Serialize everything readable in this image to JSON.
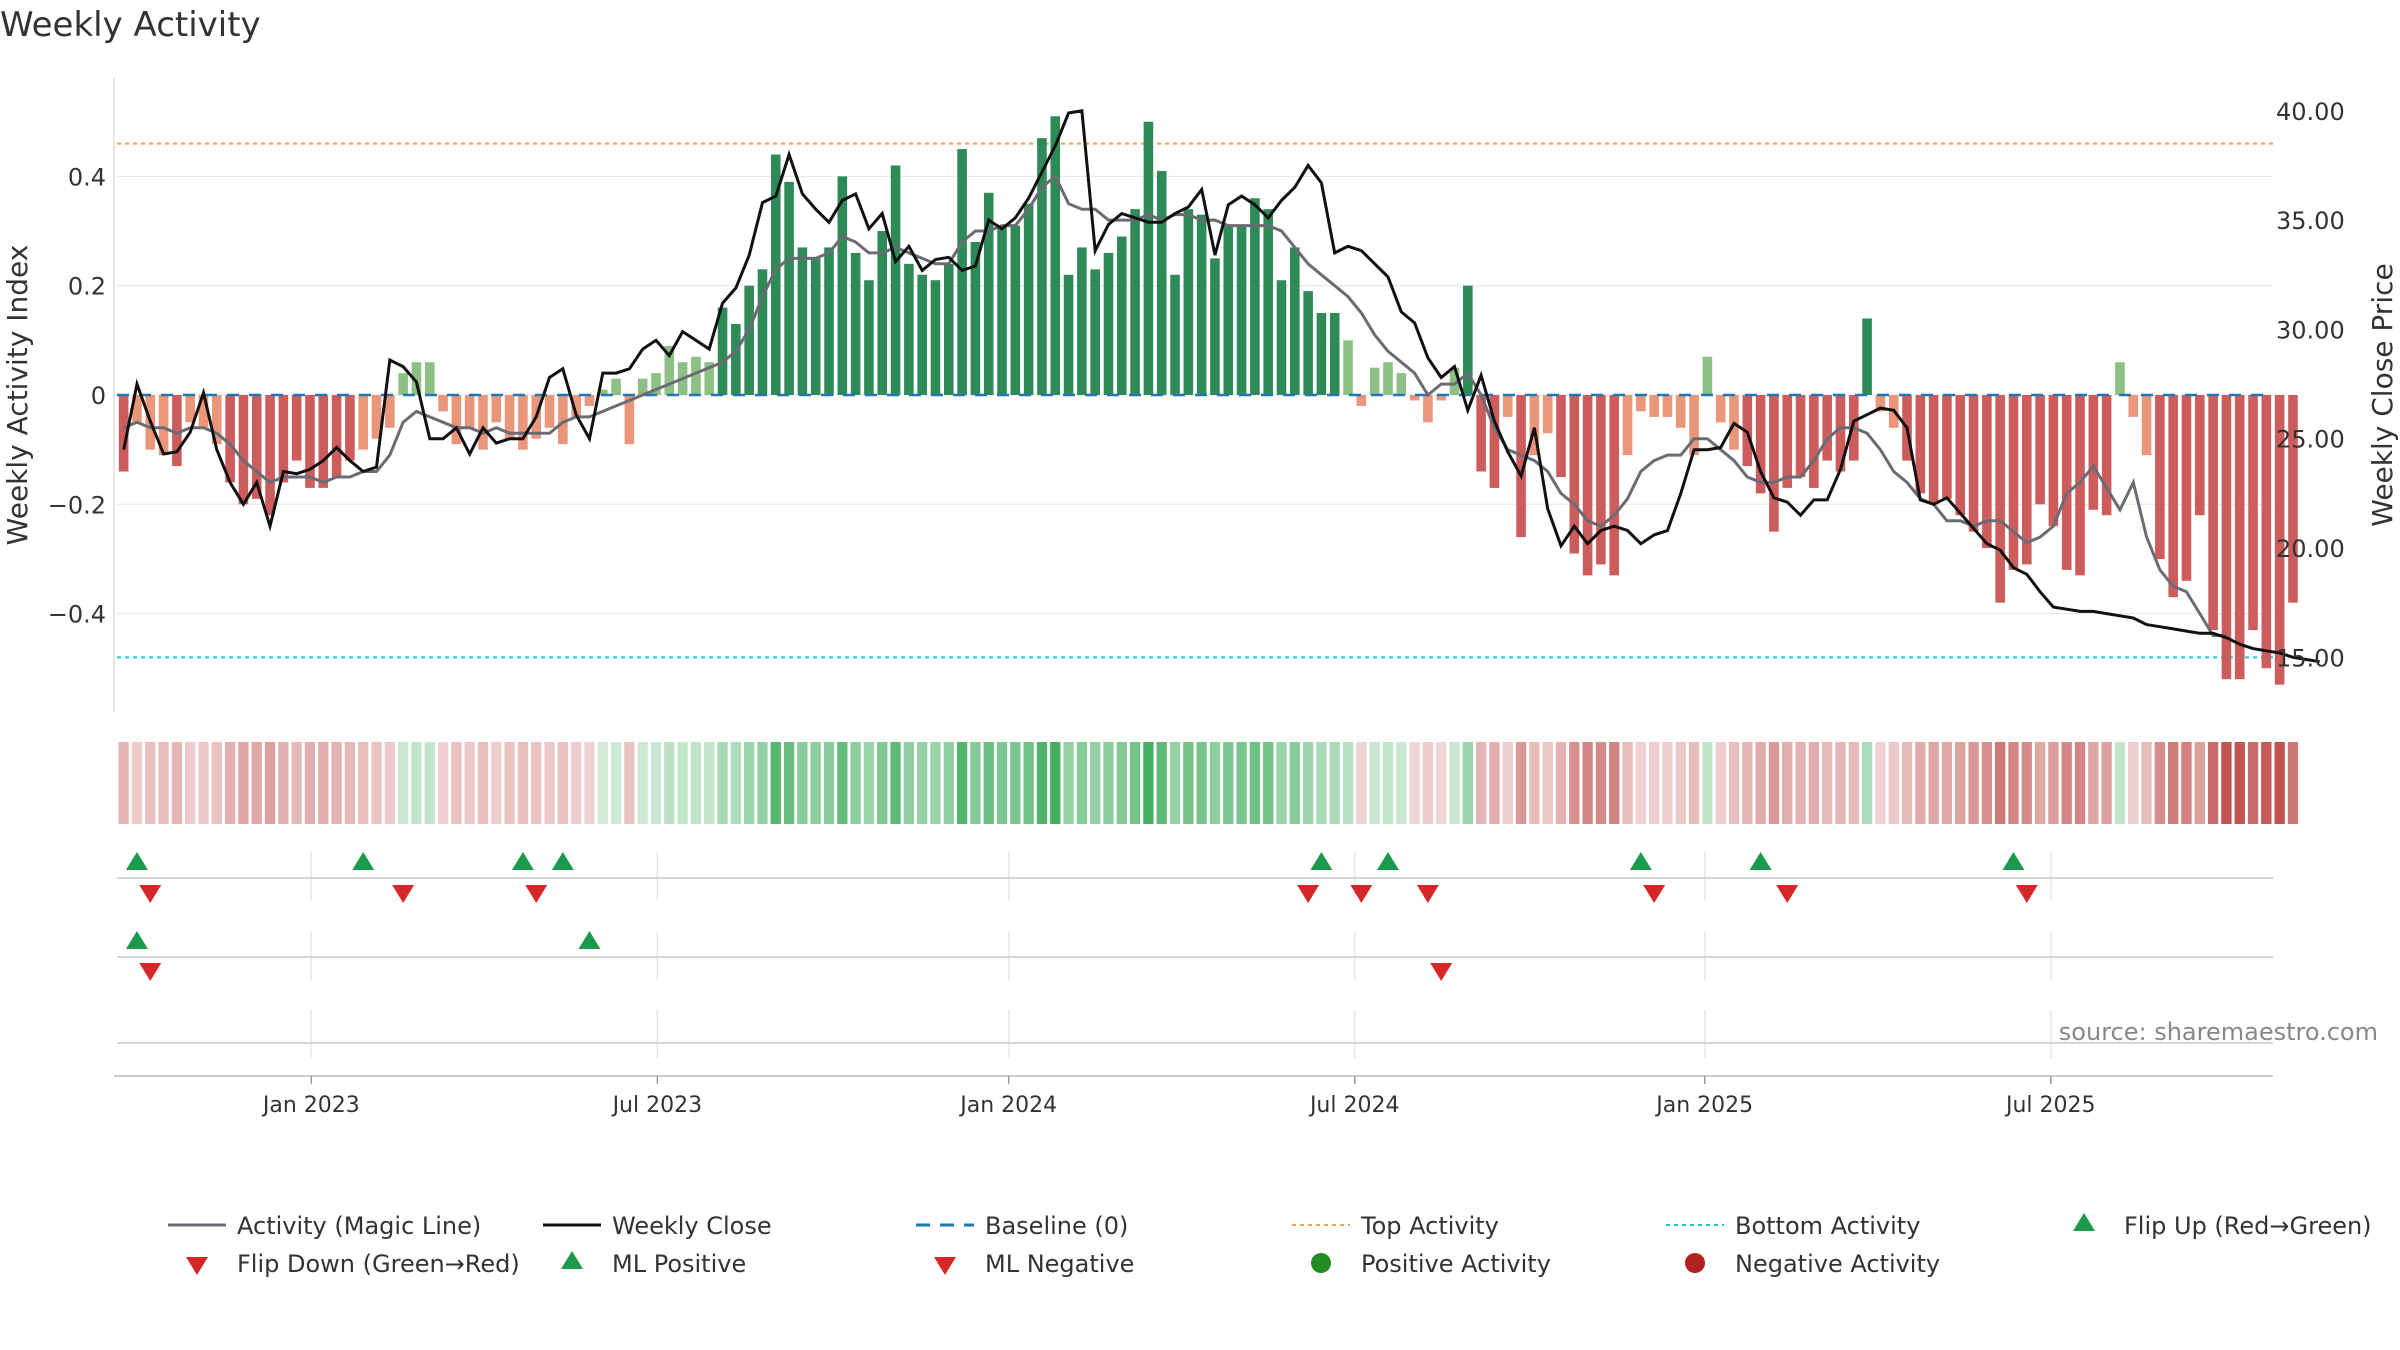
{
  "chart_data": {
    "type": "bar",
    "title": "Weekly Activity",
    "ylabel_left": "Weekly Activity Index",
    "ylabel_right": "Weekly Close Price",
    "source": "source: sharemaestro.com",
    "ylim_left": [
      -0.58,
      0.58
    ],
    "ylim_right": [
      12.5,
      41.5
    ],
    "yticks_left": [
      {
        "value": 0.4,
        "label": "0.4"
      },
      {
        "value": 0.2,
        "label": "0.2"
      },
      {
        "value": 0,
        "label": "0"
      },
      {
        "value": -0.2,
        "label": "−0.2"
      },
      {
        "value": -0.4,
        "label": "−0.4"
      }
    ],
    "yticks_right": [
      {
        "value": 40,
        "label": "40.00"
      },
      {
        "value": 35,
        "label": "35.00"
      },
      {
        "value": 30,
        "label": "30.00"
      },
      {
        "value": 25,
        "label": "25.00"
      },
      {
        "value": 20,
        "label": "20.00"
      },
      {
        "value": 15,
        "label": "15.00"
      }
    ],
    "x_range_weeks": [
      0,
      162
    ],
    "xticks": [
      {
        "week": 14.6,
        "label": "Jan 2023"
      },
      {
        "week": 40.6,
        "label": "Jul 2023"
      },
      {
        "week": 67.0,
        "label": "Jan 2024"
      },
      {
        "week": 93.0,
        "label": "Jul 2024"
      },
      {
        "week": 119.3,
        "label": "Jan 2025"
      },
      {
        "week": 145.3,
        "label": "Jul 2025"
      }
    ],
    "top_activity": 0.46,
    "bottom_activity": -0.48,
    "colors": {
      "strong_positive": "#2e8b57",
      "weak_positive": "#8cc084",
      "strong_negative": "#cd5c5c",
      "weak_negative": "#e9967a",
      "magic_line": "#6b6b74",
      "close_line": "#111111",
      "baseline": "#1f77b4",
      "top_line": "#f0a050",
      "bottom_line": "#22c4d8",
      "flip_up": "#1a9a4a",
      "flip_down": "#d62728",
      "positive_dot": "#228b22",
      "negative_dot": "#b22222"
    },
    "series": [
      {
        "name": "Activity bars",
        "values": [
          -0.14,
          -0.05,
          -0.1,
          -0.11,
          -0.13,
          -0.05,
          -0.06,
          -0.09,
          -0.16,
          -0.2,
          -0.19,
          -0.22,
          -0.16,
          -0.12,
          -0.17,
          -0.17,
          -0.15,
          -0.12,
          -0.1,
          -0.08,
          -0.06,
          0.04,
          0.06,
          0.06,
          -0.03,
          -0.09,
          -0.06,
          -0.1,
          -0.05,
          -0.08,
          -0.1,
          -0.08,
          -0.06,
          -0.09,
          -0.04,
          -0.02,
          0.01,
          0.03,
          -0.09,
          0.03,
          0.04,
          0.09,
          0.06,
          0.07,
          0.06,
          0.16,
          0.13,
          0.2,
          0.23,
          0.44,
          0.39,
          0.27,
          0.25,
          0.27,
          0.4,
          0.26,
          0.21,
          0.3,
          0.42,
          0.24,
          0.22,
          0.21,
          0.24,
          0.45,
          0.28,
          0.37,
          0.31,
          0.31,
          0.35,
          0.47,
          0.51,
          0.22,
          0.27,
          0.23,
          0.26,
          0.29,
          0.34,
          0.5,
          0.41,
          0.22,
          0.34,
          0.33,
          0.25,
          0.31,
          0.31,
          0.36,
          0.34,
          0.21,
          0.27,
          0.19,
          0.15,
          0.15,
          0.1,
          -0.02,
          0.05,
          0.06,
          0.04,
          -0.01,
          -0.05,
          -0.01,
          0.05,
          0.2,
          -0.14,
          -0.17,
          -0.04,
          -0.26,
          -0.11,
          -0.07,
          -0.15,
          -0.29,
          -0.33,
          -0.31,
          -0.33,
          -0.11,
          -0.03,
          -0.04,
          -0.04,
          -0.06,
          -0.11,
          0.07,
          -0.05,
          -0.1,
          -0.13,
          -0.18,
          -0.25,
          -0.17,
          -0.15,
          -0.17,
          -0.12,
          -0.14,
          -0.12,
          0.14,
          -0.03,
          -0.06,
          -0.12,
          -0.18,
          -0.2,
          -0.19,
          -0.22,
          -0.25,
          -0.28,
          -0.38,
          -0.32,
          -0.31,
          -0.2,
          -0.24,
          -0.32,
          -0.33,
          -0.21,
          -0.22,
          0.06,
          -0.04,
          -0.11,
          -0.3,
          -0.37,
          -0.34,
          -0.22,
          -0.43,
          -0.52,
          -0.52,
          -0.43,
          -0.5,
          -0.53,
          -0.38
        ]
      },
      {
        "name": "Activity (Magic Line)",
        "values": [
          -0.06,
          -0.05,
          -0.06,
          -0.06,
          -0.07,
          -0.06,
          -0.06,
          -0.07,
          -0.09,
          -0.12,
          -0.14,
          -0.16,
          -0.15,
          -0.15,
          -0.15,
          -0.16,
          -0.15,
          -0.15,
          -0.14,
          -0.14,
          -0.11,
          -0.05,
          -0.03,
          -0.04,
          -0.05,
          -0.06,
          -0.06,
          -0.07,
          -0.06,
          -0.07,
          -0.07,
          -0.07,
          -0.07,
          -0.05,
          -0.04,
          -0.04,
          -0.03,
          -0.02,
          -0.01,
          0,
          0.01,
          0.02,
          0.03,
          0.04,
          0.05,
          0.06,
          0.08,
          0.12,
          0.18,
          0.23,
          0.25,
          0.25,
          0.25,
          0.26,
          0.29,
          0.28,
          0.26,
          0.26,
          0.27,
          0.26,
          0.25,
          0.24,
          0.24,
          0.28,
          0.3,
          0.3,
          0.31,
          0.31,
          0.34,
          0.38,
          0.4,
          0.35,
          0.34,
          0.34,
          0.32,
          0.32,
          0.32,
          0.33,
          0.32,
          0.33,
          0.33,
          0.32,
          0.32,
          0.31,
          0.31,
          0.31,
          0.31,
          0.3,
          0.27,
          0.24,
          0.22,
          0.2,
          0.18,
          0.15,
          0.11,
          0.08,
          0.06,
          0.04,
          0,
          0.02,
          0.02,
          0.04,
          0,
          -0.06,
          -0.1,
          -0.11,
          -0.12,
          -0.14,
          -0.18,
          -0.2,
          -0.23,
          -0.24,
          -0.22,
          -0.19,
          -0.14,
          -0.12,
          -0.11,
          -0.11,
          -0.08,
          -0.08,
          -0.1,
          -0.12,
          -0.15,
          -0.16,
          -0.16,
          -0.15,
          -0.15,
          -0.12,
          -0.08,
          -0.06,
          -0.06,
          -0.07,
          -0.1,
          -0.14,
          -0.16,
          -0.19,
          -0.2,
          -0.23,
          -0.23,
          -0.24,
          -0.23,
          -0.23,
          -0.25,
          -0.27,
          -0.26,
          -0.24,
          -0.18,
          -0.16,
          -0.13,
          -0.17,
          -0.21,
          -0.16,
          -0.26,
          -0.32,
          -0.35,
          -0.36,
          -0.4,
          -0.44,
          -0.44
        ]
      },
      {
        "name": "Weekly Close",
        "values": [
          24.5,
          27.5,
          25.8,
          24.3,
          24.4,
          25.3,
          27.1,
          24.5,
          23,
          22,
          23,
          21,
          23.5,
          23.4,
          23.6,
          24,
          24.6,
          24,
          23.5,
          23.7,
          28.6,
          28.3,
          27.6,
          25,
          25,
          25.5,
          24.3,
          25.5,
          24.8,
          25,
          25,
          26,
          27.8,
          28.2,
          26.1,
          25,
          28,
          28,
          28.2,
          29.1,
          29.5,
          28.8,
          29.9,
          29.5,
          29.1,
          31.2,
          31.9,
          33.4,
          35.8,
          36.1,
          38,
          36.2,
          35.5,
          34.9,
          35.9,
          36.2,
          34.6,
          35.3,
          33.1,
          33.8,
          32.7,
          33.2,
          33.3,
          32.7,
          32.9,
          35,
          34.6,
          35.1,
          36,
          37.2,
          38.4,
          39.9,
          40,
          33.6,
          34.8,
          35.3,
          35.1,
          34.9,
          34.9,
          35.3,
          35.6,
          36.4,
          33.4,
          35.7,
          36.1,
          35.7,
          35.1,
          35.9,
          36.5,
          37.5,
          36.7,
          33.5,
          33.8,
          33.6,
          33,
          32.4,
          30.8,
          30.3,
          28.7,
          27.8,
          28.3,
          26.3,
          27.9,
          25.8,
          24.4,
          23.3,
          25.5,
          21.8,
          20.1,
          21,
          20.2,
          20.8,
          21,
          20.8,
          20.2,
          20.6,
          20.8,
          22.5,
          24.5,
          24.5,
          24.6,
          25.7,
          25.3,
          23.5,
          22.3,
          22.1,
          21.5,
          22.2,
          22.2,
          23.6,
          25.8,
          26.1,
          26.4,
          26.3,
          25.5,
          22.2,
          22,
          22.3,
          21.6,
          20.9,
          20.2,
          19.9,
          19.1,
          18.8,
          18,
          17.3,
          17.2,
          17.1,
          17.1,
          17,
          16.9,
          16.8,
          16.5,
          16.4,
          16.3,
          16.2,
          16.1,
          16.1,
          15.9,
          15.6,
          15.4,
          15.3,
          15.2,
          15,
          14.9,
          14.8
        ]
      },
      {
        "name": "Heatmap strip",
        "values": [
          -0.14,
          -0.05,
          -0.1,
          -0.11,
          -0.13,
          -0.05,
          -0.06,
          -0.09,
          -0.16,
          -0.2,
          -0.19,
          -0.22,
          -0.16,
          -0.12,
          -0.17,
          -0.17,
          -0.15,
          -0.12,
          -0.1,
          -0.08,
          -0.06,
          0.04,
          0.06,
          0.06,
          -0.03,
          -0.09,
          -0.06,
          -0.1,
          -0.05,
          -0.08,
          -0.1,
          -0.08,
          -0.06,
          -0.09,
          -0.04,
          -0.02,
          0.01,
          0.03,
          -0.09,
          0.03,
          0.04,
          0.09,
          0.06,
          0.07,
          0.06,
          0.16,
          0.13,
          0.2,
          0.23,
          0.44,
          0.39,
          0.27,
          0.25,
          0.27,
          0.4,
          0.26,
          0.21,
          0.3,
          0.42,
          0.24,
          0.22,
          0.21,
          0.24,
          0.45,
          0.28,
          0.37,
          0.31,
          0.31,
          0.35,
          0.47,
          0.51,
          0.22,
          0.27,
          0.23,
          0.26,
          0.29,
          0.34,
          0.5,
          0.41,
          0.22,
          0.34,
          0.33,
          0.25,
          0.31,
          0.31,
          0.36,
          0.34,
          0.21,
          0.27,
          0.19,
          0.15,
          0.15,
          0.1,
          -0.02,
          0.05,
          0.06,
          0.04,
          -0.01,
          -0.05,
          -0.01,
          0.05,
          0.2,
          -0.14,
          -0.17,
          -0.04,
          -0.26,
          -0.11,
          -0.07,
          -0.15,
          -0.29,
          -0.33,
          -0.31,
          -0.33,
          -0.11,
          -0.03,
          -0.04,
          -0.04,
          -0.06,
          -0.11,
          0.07,
          -0.05,
          -0.1,
          -0.13,
          -0.18,
          -0.25,
          -0.17,
          -0.15,
          -0.17,
          -0.12,
          -0.14,
          -0.12,
          0.14,
          -0.03,
          -0.06,
          -0.12,
          -0.18,
          -0.2,
          -0.19,
          -0.22,
          -0.25,
          -0.28,
          -0.38,
          -0.32,
          -0.31,
          -0.2,
          -0.24,
          -0.32,
          -0.33,
          -0.21,
          -0.22,
          0.06,
          -0.04,
          -0.11,
          -0.3,
          -0.37,
          -0.34,
          -0.22,
          -0.43,
          -0.52,
          -0.52,
          -0.43,
          -0.5,
          -0.53,
          -0.38
        ]
      }
    ],
    "flip_up_weeks": [
      1,
      18,
      30,
      33,
      90,
      95,
      114,
      123,
      142
    ],
    "flip_down_weeks": [
      2,
      21,
      31,
      89,
      93,
      98,
      115,
      125,
      143
    ],
    "ml_positive_weeks": [
      1,
      35
    ],
    "ml_negative_weeks": [
      2,
      99
    ],
    "legend": [
      {
        "label": "Activity (Magic Line)",
        "symbol": "line-solid-gray"
      },
      {
        "label": "Weekly Close",
        "symbol": "line-solid-black"
      },
      {
        "label": "Baseline (0)",
        "symbol": "line-dash-blue"
      },
      {
        "label": "Top Activity",
        "symbol": "line-dot-orange"
      },
      {
        "label": "Bottom Activity",
        "symbol": "line-dot-cyan"
      },
      {
        "label": "Flip Up (Red→Green)",
        "symbol": "triangle-up-green"
      },
      {
        "label": "Flip Down (Green→Red)",
        "symbol": "triangle-down-red"
      },
      {
        "label": "ML Positive",
        "symbol": "triangle-up-green"
      },
      {
        "label": "ML Negative",
        "symbol": "triangle-down-red"
      },
      {
        "label": "Positive Activity",
        "symbol": "dot-green"
      },
      {
        "label": "Negative Activity",
        "symbol": "dot-red"
      }
    ]
  }
}
